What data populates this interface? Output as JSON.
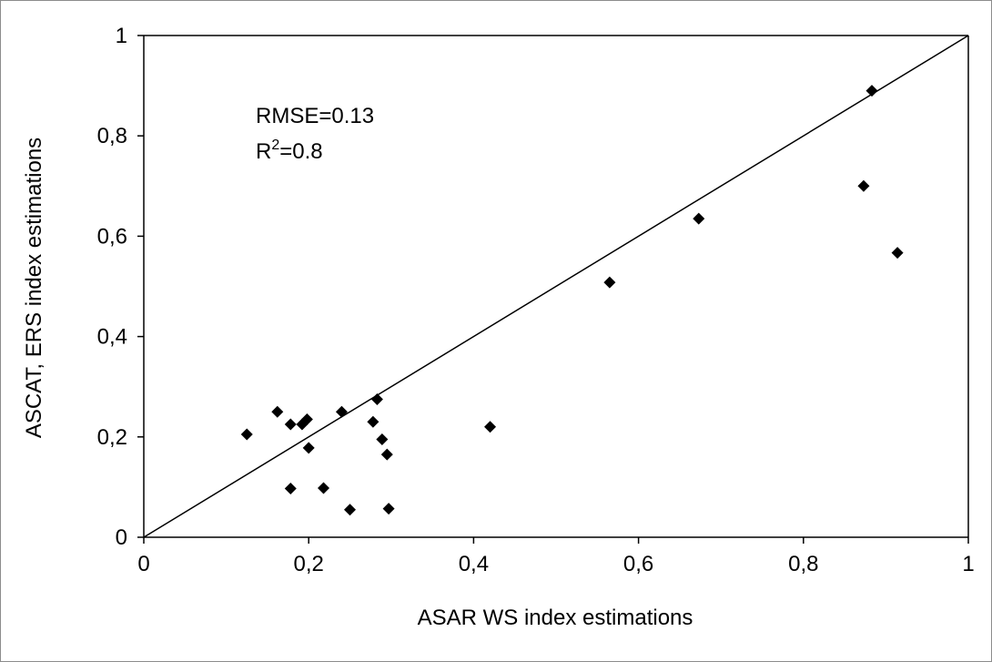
{
  "chart_data": {
    "type": "scatter",
    "title": "",
    "xlabel": "ASAR WS index estimations",
    "ylabel": "ASCAT, ERS index estimations",
    "xlim": [
      0,
      1
    ],
    "ylim": [
      0,
      1
    ],
    "x_ticks": [
      "0",
      "0,2",
      "0,4",
      "0,6",
      "0,8",
      "1"
    ],
    "y_ticks": [
      "0",
      "0,2",
      "0,4",
      "0,6",
      "0,8",
      "1"
    ],
    "x_tick_values": [
      0,
      0.2,
      0.4,
      0.6,
      0.8,
      1
    ],
    "y_tick_values": [
      0,
      0.2,
      0.4,
      0.6,
      0.8,
      1
    ],
    "grid": false,
    "marker": "diamond",
    "marker_color": "#000000",
    "reference_line": {
      "x": [
        0,
        1
      ],
      "y": [
        0,
        1
      ]
    },
    "annotations": {
      "rmse": "RMSE=0.13",
      "r2_prefix": "R",
      "r2_sup": "2",
      "r2_suffix": "=0.8"
    },
    "points": [
      {
        "x": 0.125,
        "y": 0.205
      },
      {
        "x": 0.162,
        "y": 0.25
      },
      {
        "x": 0.178,
        "y": 0.225
      },
      {
        "x": 0.178,
        "y": 0.097
      },
      {
        "x": 0.192,
        "y": 0.225
      },
      {
        "x": 0.198,
        "y": 0.235
      },
      {
        "x": 0.2,
        "y": 0.178
      },
      {
        "x": 0.218,
        "y": 0.098
      },
      {
        "x": 0.24,
        "y": 0.25
      },
      {
        "x": 0.25,
        "y": 0.055
      },
      {
        "x": 0.278,
        "y": 0.23
      },
      {
        "x": 0.283,
        "y": 0.275
      },
      {
        "x": 0.289,
        "y": 0.195
      },
      {
        "x": 0.295,
        "y": 0.165
      },
      {
        "x": 0.297,
        "y": 0.057
      },
      {
        "x": 0.42,
        "y": 0.22
      },
      {
        "x": 0.565,
        "y": 0.508
      },
      {
        "x": 0.673,
        "y": 0.635
      },
      {
        "x": 0.873,
        "y": 0.7
      },
      {
        "x": 0.883,
        "y": 0.89
      },
      {
        "x": 0.914,
        "y": 0.567
      }
    ]
  }
}
